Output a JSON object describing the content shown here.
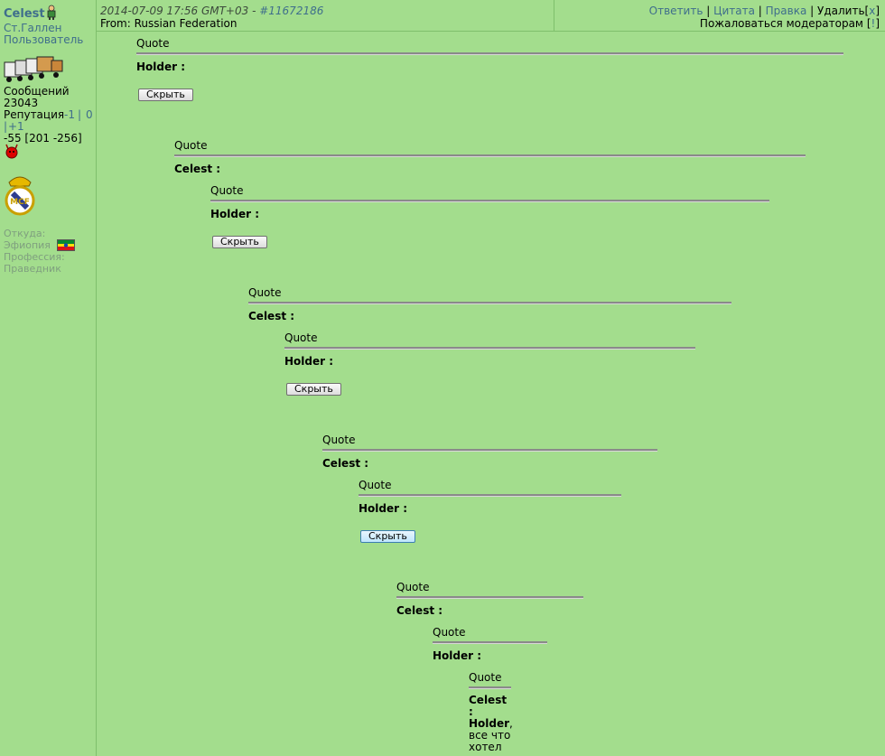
{
  "user": {
    "name": "Celest",
    "city": "Ст.Галлен",
    "role": "Пользователь",
    "posts_label": "Сообщений",
    "posts_count": "23043",
    "reputation_label": "Репутация",
    "rep_minus": "-1",
    "rep_sep": "|",
    "rep_zero": "0",
    "rep_plus": "+1",
    "rep_value": "-55 [201 -256]",
    "from_label": "Откуда:",
    "country": "Эфиопия",
    "profession_label": "Профессия:",
    "profession": "Праведник"
  },
  "post": {
    "date": "2014-07-09 17:56 GMT+03 - ",
    "id": "#11672186",
    "from": "From: Russian Federation"
  },
  "actions": {
    "reply": "Ответить",
    "quote": "Цитата",
    "edit": "Правка",
    "delete": "Удалить",
    "delete_x": "x",
    "report": "Пожаловаться модераторам",
    "report_mark": "!",
    "sep": "|"
  },
  "quote_label": "Quote",
  "authors": {
    "holder": "Holder :",
    "celest": "Celest :"
  },
  "hide_label": "Скрыть",
  "final": {
    "author1": "Celest",
    "colon": ":",
    "author2": "Holder",
    "text": ", все что хотел"
  },
  "colors": {
    "background": "#a3dd8d",
    "link": "#3f6e8c"
  }
}
